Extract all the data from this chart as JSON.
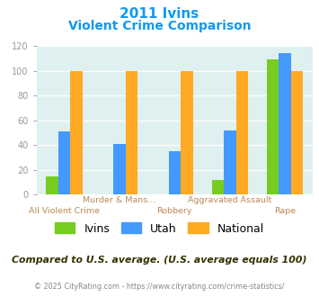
{
  "title_line1": "2011 Ivins",
  "title_line2": "Violent Crime Comparison",
  "categories": [
    "All Violent Crime",
    "Murder & Mans...",
    "Robbery",
    "Aggravated Assault",
    "Rape"
  ],
  "top_labels": [
    "",
    "Murder & Mans...",
    "",
    "Aggravated Assault",
    ""
  ],
  "bot_labels": [
    "All Violent Crime",
    "",
    "Robbery",
    "",
    "Rape"
  ],
  "series": {
    "Ivins": [
      15,
      0,
      0,
      12,
      109
    ],
    "Utah": [
      51,
      41,
      35,
      52,
      114
    ],
    "National": [
      100,
      100,
      100,
      100,
      100
    ]
  },
  "colors": {
    "Ivins": "#77cc22",
    "Utah": "#4499ff",
    "National": "#ffaa22"
  },
  "ylim": [
    0,
    120
  ],
  "yticks": [
    0,
    20,
    40,
    60,
    80,
    100,
    120
  ],
  "bg_color": "#dff0f0",
  "title_color": "#1199ee",
  "label_color": "#bb8855",
  "label_fontsize": 6.8,
  "footer_text": "Compared to U.S. average. (U.S. average equals 100)",
  "copyright_text": "© 2025 CityRating.com - https://www.cityrating.com/crime-statistics/",
  "footer_color": "#333300",
  "copyright_color": "#888888",
  "bar_width": 0.22
}
